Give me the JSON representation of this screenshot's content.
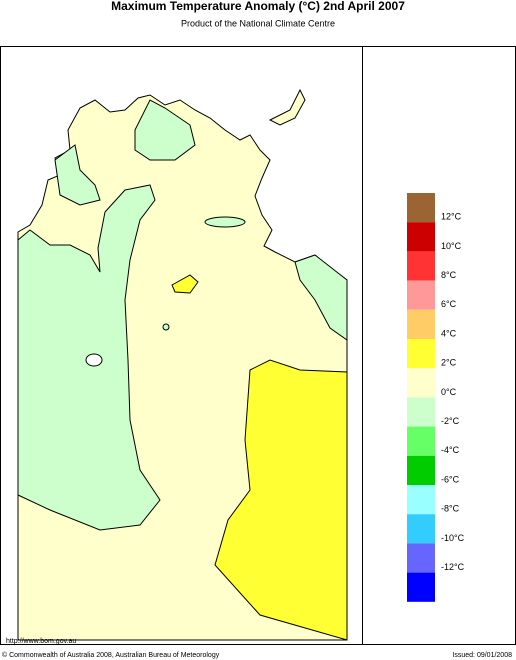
{
  "header": {
    "title": "Maximum Temperature Anomaly (°C)  2nd April 2007",
    "subtitle": "Product of the National Climate Centre"
  },
  "legend": {
    "colors": [
      "#9b6432",
      "#cc0000",
      "#ff3333",
      "#ff9999",
      "#ffcc66",
      "#ffff33",
      "#ffffcc",
      "#ccffcc",
      "#66ff66",
      "#00cc00",
      "#99ffff",
      "#33ccff",
      "#6666ff",
      "#0000ff"
    ],
    "labels": [
      "12°C",
      "10°C",
      "8°C",
      "6°C",
      "4°C",
      "2°C",
      "0°C",
      "-2°C",
      "-4°C",
      "-6°C",
      "-8°C",
      "-10°C",
      "-12°C"
    ]
  },
  "footer": {
    "url": "http://www.bom.gov.au",
    "copyright": "© Commonwealth of Australia 2008, Australian Bureau of Meteorology",
    "issued": "Issued: 09/01/2008"
  }
}
